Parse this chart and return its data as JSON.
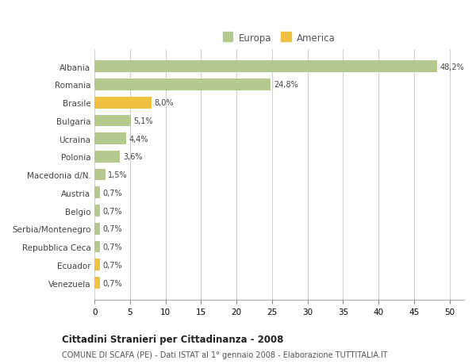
{
  "categories": [
    "Albania",
    "Romania",
    "Brasile",
    "Bulgaria",
    "Ucraina",
    "Polonia",
    "Macedonia d/N.",
    "Austria",
    "Belgio",
    "Serbia/Montenegro",
    "Repubblica Ceca",
    "Ecuador",
    "Venezuela"
  ],
  "values": [
    48.2,
    24.8,
    8.0,
    5.1,
    4.4,
    3.6,
    1.5,
    0.7,
    0.7,
    0.7,
    0.7,
    0.7,
    0.7
  ],
  "labels": [
    "48,2%",
    "24,8%",
    "8,0%",
    "5,1%",
    "4,4%",
    "3,6%",
    "1,5%",
    "0,7%",
    "0,7%",
    "0,7%",
    "0,7%",
    "0,7%",
    "0,7%"
  ],
  "colors": [
    "#b5c98e",
    "#b5c98e",
    "#f0c040",
    "#b5c98e",
    "#b5c98e",
    "#b5c98e",
    "#b5c98e",
    "#b5c98e",
    "#b5c98e",
    "#b5c98e",
    "#b5c98e",
    "#f0c040",
    "#f0c040"
  ],
  "europa_color": "#b5c98e",
  "america_color": "#f0c040",
  "title": "Cittadini Stranieri per Cittadinanza - 2008",
  "subtitle": "COMUNE DI SCAFA (PE) - Dati ISTAT al 1° gennaio 2008 - Elaborazione TUTTITALIA.IT",
  "xlim": [
    0,
    52
  ],
  "xticks": [
    0,
    5,
    10,
    15,
    20,
    25,
    30,
    35,
    40,
    45,
    50
  ],
  "background_color": "#ffffff",
  "grid_color": "#d0d0d0"
}
